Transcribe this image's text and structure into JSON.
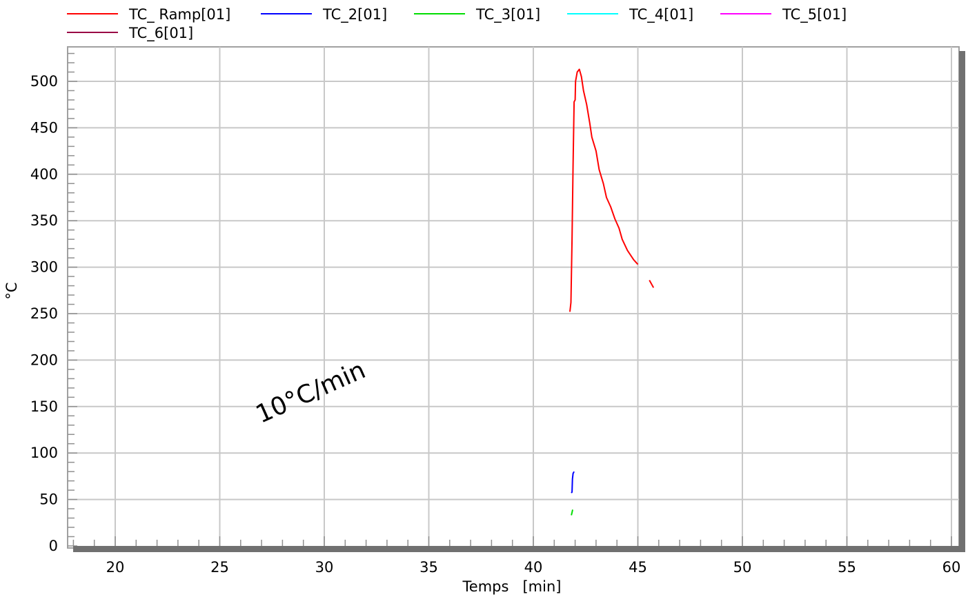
{
  "chart_data": {
    "type": "line",
    "xlabel": "Temps   [min]",
    "ylabel": "°C",
    "xlim": [
      18,
      60.5
    ],
    "ylim": [
      0,
      535
    ],
    "x_ticks": [
      20,
      25,
      30,
      35,
      40,
      45,
      50,
      55,
      60
    ],
    "y_ticks": [
      0,
      50,
      100,
      150,
      200,
      250,
      300,
      350,
      400,
      450,
      500
    ],
    "grid": true,
    "legend_position": "top",
    "annotation": "10°C/min",
    "series": [
      {
        "name": "TC_ Ramp[01]",
        "color": "#ff0000",
        "segments": [
          [
            [
              41.75,
              252
            ],
            [
              41.8,
              262
            ],
            [
              41.85,
              330
            ],
            [
              41.9,
              410
            ],
            [
              41.95,
              478
            ],
            [
              42.0,
              480
            ],
            [
              42.02,
              500
            ],
            [
              42.1,
              510
            ],
            [
              42.2,
              513
            ],
            [
              42.3,
              505
            ],
            [
              42.4,
              490
            ],
            [
              42.55,
              475
            ],
            [
              42.7,
              455
            ],
            [
              42.8,
              440
            ],
            [
              43.0,
              425
            ],
            [
              43.15,
              405
            ],
            [
              43.35,
              390
            ],
            [
              43.5,
              375
            ],
            [
              43.7,
              365
            ],
            [
              43.9,
              352
            ],
            [
              44.1,
              342
            ],
            [
              44.25,
              330
            ],
            [
              44.5,
              318
            ],
            [
              44.8,
              308
            ],
            [
              45.0,
              303
            ]
          ],
          [
            [
              45.55,
              286
            ],
            [
              45.75,
              278
            ]
          ]
        ]
      },
      {
        "name": "TC_2[01]",
        "color": "#0000ff",
        "segments": [
          [
            [
              41.82,
              57
            ],
            [
              41.85,
              58
            ],
            [
              41.87,
              72
            ],
            [
              41.9,
              78
            ],
            [
              41.95,
              80
            ]
          ]
        ]
      },
      {
        "name": "TC_3[01]",
        "color": "#00dd00",
        "segments": [
          [
            [
              41.82,
              33
            ],
            [
              41.85,
              36
            ],
            [
              41.88,
              39
            ]
          ]
        ]
      },
      {
        "name": "TC_4[01]",
        "color": "#00ffff",
        "segments": []
      },
      {
        "name": "TC_5[01]",
        "color": "#ff00ff",
        "segments": []
      },
      {
        "name": "TC_6[01]",
        "color": "#990044",
        "segments": []
      }
    ]
  }
}
